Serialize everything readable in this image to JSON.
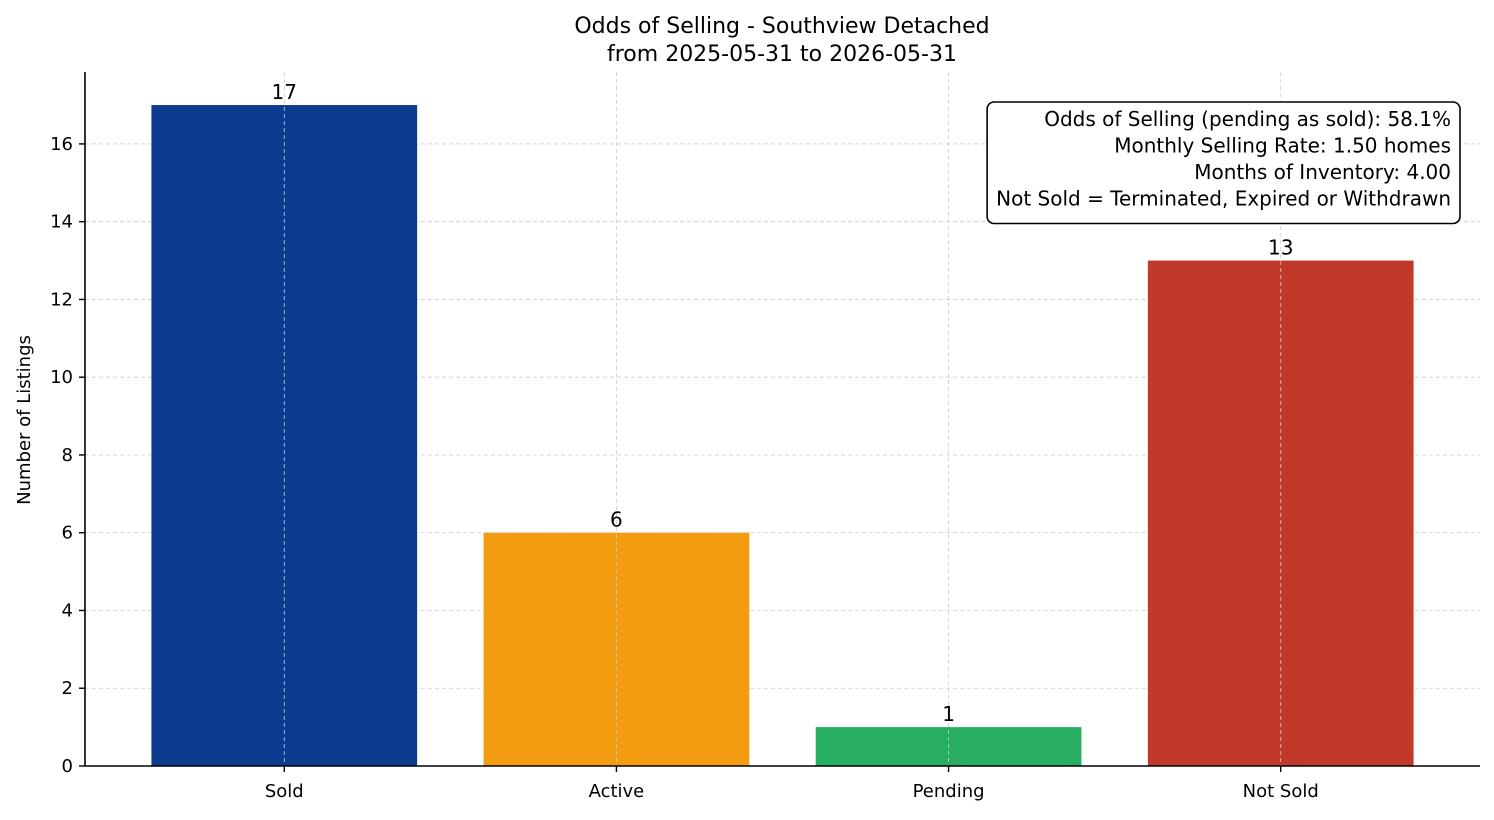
{
  "chart_data": {
    "type": "bar",
    "title": "Odds of Selling - Southview Detached",
    "subtitle": "from 2025-05-31 to 2026-05-31",
    "xlabel": "",
    "ylabel": "Number of Listings",
    "categories": [
      "Sold",
      "Active",
      "Pending",
      "Not Sold"
    ],
    "values": [
      17,
      6,
      1,
      13
    ],
    "value_labels": [
      "17",
      "6",
      "1",
      "13"
    ],
    "colors": [
      "#0b3b8f",
      "#f39c12",
      "#27ae60",
      "#c0392b"
    ],
    "ylim": [
      0,
      17.85
    ],
    "yticks": [
      0,
      2,
      4,
      6,
      8,
      10,
      12,
      14,
      16
    ],
    "grid": true,
    "info_box": {
      "placement": "top-right",
      "lines": [
        "Odds of Selling (pending as sold): 58.1%",
        "Monthly Selling Rate: 1.50 homes",
        "Months of Inventory: 4.00",
        "Not Sold = Terminated, Expired or Withdrawn"
      ]
    }
  }
}
